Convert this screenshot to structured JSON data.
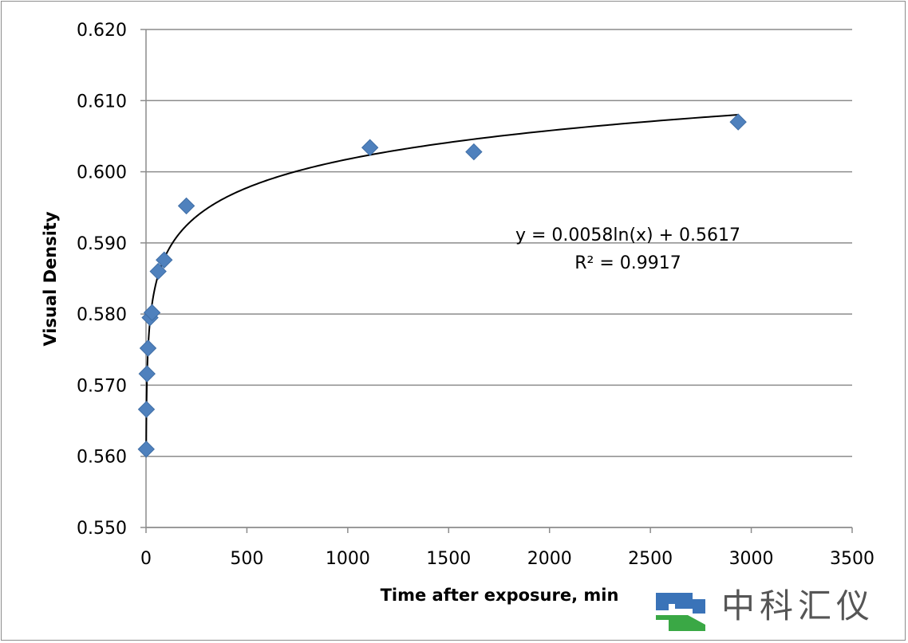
{
  "chart_data": {
    "type": "scatter",
    "xlabel": "Time after exposure, min",
    "ylabel": "Visual Density",
    "xlim": [
      0,
      3500
    ],
    "ylim": [
      0.55,
      0.62
    ],
    "x_ticks": [
      "0",
      "500",
      "1000",
      "1500",
      "2000",
      "2500",
      "3000",
      "3500"
    ],
    "y_ticks": [
      "0.550",
      "0.560",
      "0.570",
      "0.580",
      "0.590",
      "0.600",
      "0.610",
      "0.620"
    ],
    "grid": "horizontal",
    "series": [
      {
        "marker": "diamond",
        "color": "#4f81bd",
        "points": [
          {
            "x": 1,
            "y": 0.561
          },
          {
            "x": 2,
            "y": 0.5666
          },
          {
            "x": 5,
            "y": 0.5716
          },
          {
            "x": 10,
            "y": 0.5752
          },
          {
            "x": 20,
            "y": 0.5795
          },
          {
            "x": 30,
            "y": 0.5802
          },
          {
            "x": 60,
            "y": 0.586
          },
          {
            "x": 90,
            "y": 0.5876
          },
          {
            "x": 200,
            "y": 0.5952
          },
          {
            "x": 1110,
            "y": 0.6034
          },
          {
            "x": 1625,
            "y": 0.6028
          },
          {
            "x": 2935,
            "y": 0.607
          }
        ]
      }
    ],
    "trendline": {
      "type": "logarithmic",
      "a": 0.0058,
      "b": 0.5617,
      "x_range": [
        1,
        2935
      ],
      "color": "#000000",
      "equation_text": "y = 0.0058ln(x) + 0.5617",
      "r2_text": "R² = 0.9917"
    }
  },
  "watermark": {
    "text": "中科汇仪",
    "logo_colors": [
      "#3a73b8",
      "#3aa845"
    ]
  }
}
